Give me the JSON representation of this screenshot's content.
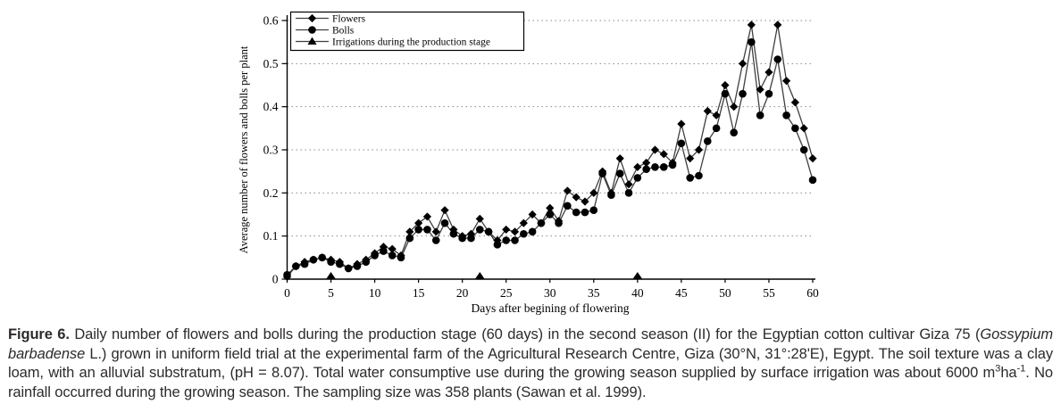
{
  "figure": {
    "name": "Figure 6"
  },
  "colors": {
    "series_line": "#3f3f3f",
    "marker_fill": "#000000",
    "grid": "#888888",
    "axis": "#000000",
    "legend_border": "#000000",
    "legend_bg": "#ffffff",
    "caption_text": "#2d2a2b"
  },
  "chart_data": {
    "type": "line",
    "title": "",
    "xlabel": "Days after begining of flowering",
    "ylabel": "Average number of flowers and bolls per plant",
    "xlim": [
      0,
      60
    ],
    "ylim": [
      0,
      0.6
    ],
    "x_ticks": [
      0,
      5,
      10,
      15,
      20,
      25,
      30,
      35,
      40,
      45,
      50,
      55,
      60
    ],
    "y_ticks": [
      0,
      0.1,
      0.2,
      0.3,
      0.4,
      0.5,
      0.6
    ],
    "grid": "horizontal dotted at 0.1-0.6",
    "legend_position": "top-left inside plot",
    "x": [
      0,
      1,
      2,
      3,
      4,
      5,
      6,
      7,
      8,
      9,
      10,
      11,
      12,
      13,
      14,
      15,
      16,
      17,
      18,
      19,
      20,
      21,
      22,
      23,
      24,
      25,
      26,
      27,
      28,
      29,
      30,
      31,
      32,
      33,
      34,
      35,
      36,
      37,
      38,
      39,
      40,
      41,
      42,
      43,
      44,
      45,
      46,
      47,
      48,
      49,
      50,
      51,
      52,
      53,
      54,
      55,
      56,
      57,
      58,
      59,
      60
    ],
    "series": [
      {
        "name": "Flowers",
        "marker": "diamond",
        "line": true,
        "values": [
          0.005,
          0.03,
          0.04,
          0.045,
          0.05,
          0.045,
          0.04,
          0.025,
          0.035,
          0.045,
          0.06,
          0.075,
          0.07,
          0.055,
          0.11,
          0.13,
          0.145,
          0.11,
          0.16,
          0.115,
          0.1,
          0.105,
          0.14,
          0.11,
          0.09,
          0.115,
          0.11,
          0.13,
          0.15,
          0.13,
          0.165,
          0.135,
          0.205,
          0.19,
          0.18,
          0.2,
          0.25,
          0.2,
          0.28,
          0.22,
          0.26,
          0.27,
          0.3,
          0.29,
          0.27,
          0.36,
          0.28,
          0.3,
          0.39,
          0.38,
          0.45,
          0.4,
          0.5,
          0.59,
          0.44,
          0.48,
          0.59,
          0.46,
          0.41,
          0.35,
          0.28
        ]
      },
      {
        "name": "Bolls",
        "marker": "circle",
        "line": true,
        "values": [
          0.01,
          0.03,
          0.035,
          0.045,
          0.05,
          0.04,
          0.035,
          0.025,
          0.03,
          0.04,
          0.055,
          0.065,
          0.055,
          0.05,
          0.095,
          0.115,
          0.115,
          0.09,
          0.13,
          0.105,
          0.095,
          0.095,
          0.115,
          0.11,
          0.08,
          0.09,
          0.09,
          0.105,
          0.11,
          0.13,
          0.15,
          0.13,
          0.17,
          0.155,
          0.155,
          0.16,
          0.245,
          0.195,
          0.245,
          0.2,
          0.235,
          0.255,
          0.26,
          0.26,
          0.265,
          0.315,
          0.235,
          0.24,
          0.32,
          0.35,
          0.43,
          0.34,
          0.43,
          0.55,
          0.38,
          0.43,
          0.51,
          0.38,
          0.35,
          0.3,
          0.23
        ]
      },
      {
        "name": "Irrigations during the production stage",
        "marker": "triangle",
        "line": false,
        "x": [
          5,
          22,
          40
        ],
        "values": [
          0,
          0,
          0
        ]
      }
    ]
  },
  "caption": {
    "segments": [
      {
        "text": "Figure 6.",
        "style": "bold"
      },
      {
        "text": " Daily number of flowers and bolls during the production stage (60 days) in the second season (II) for the Egyptian cotton cultivar Giza 75 (",
        "style": "normal"
      },
      {
        "text": "Gossypium barbadense",
        "style": "italic"
      },
      {
        "text": " L.) grown in uniform field trial at the experimental farm of the Agricultural Research Centre, Giza (30°N, 31°:28'E), Egypt. The soil texture was a clay loam, with an alluvial substratum, (pH = 8.07). Total water consumptive use during the growing season supplied by surface irrigation was about 6000 m",
        "style": "normal"
      },
      {
        "text": "3",
        "style": "sup"
      },
      {
        "text": "ha",
        "style": "normal"
      },
      {
        "text": "-1",
        "style": "sup"
      },
      {
        "text": ". No rainfall occurred during the growing season. The sampling size was 358 plants (Sawan et al. 1999).",
        "style": "normal"
      }
    ]
  }
}
